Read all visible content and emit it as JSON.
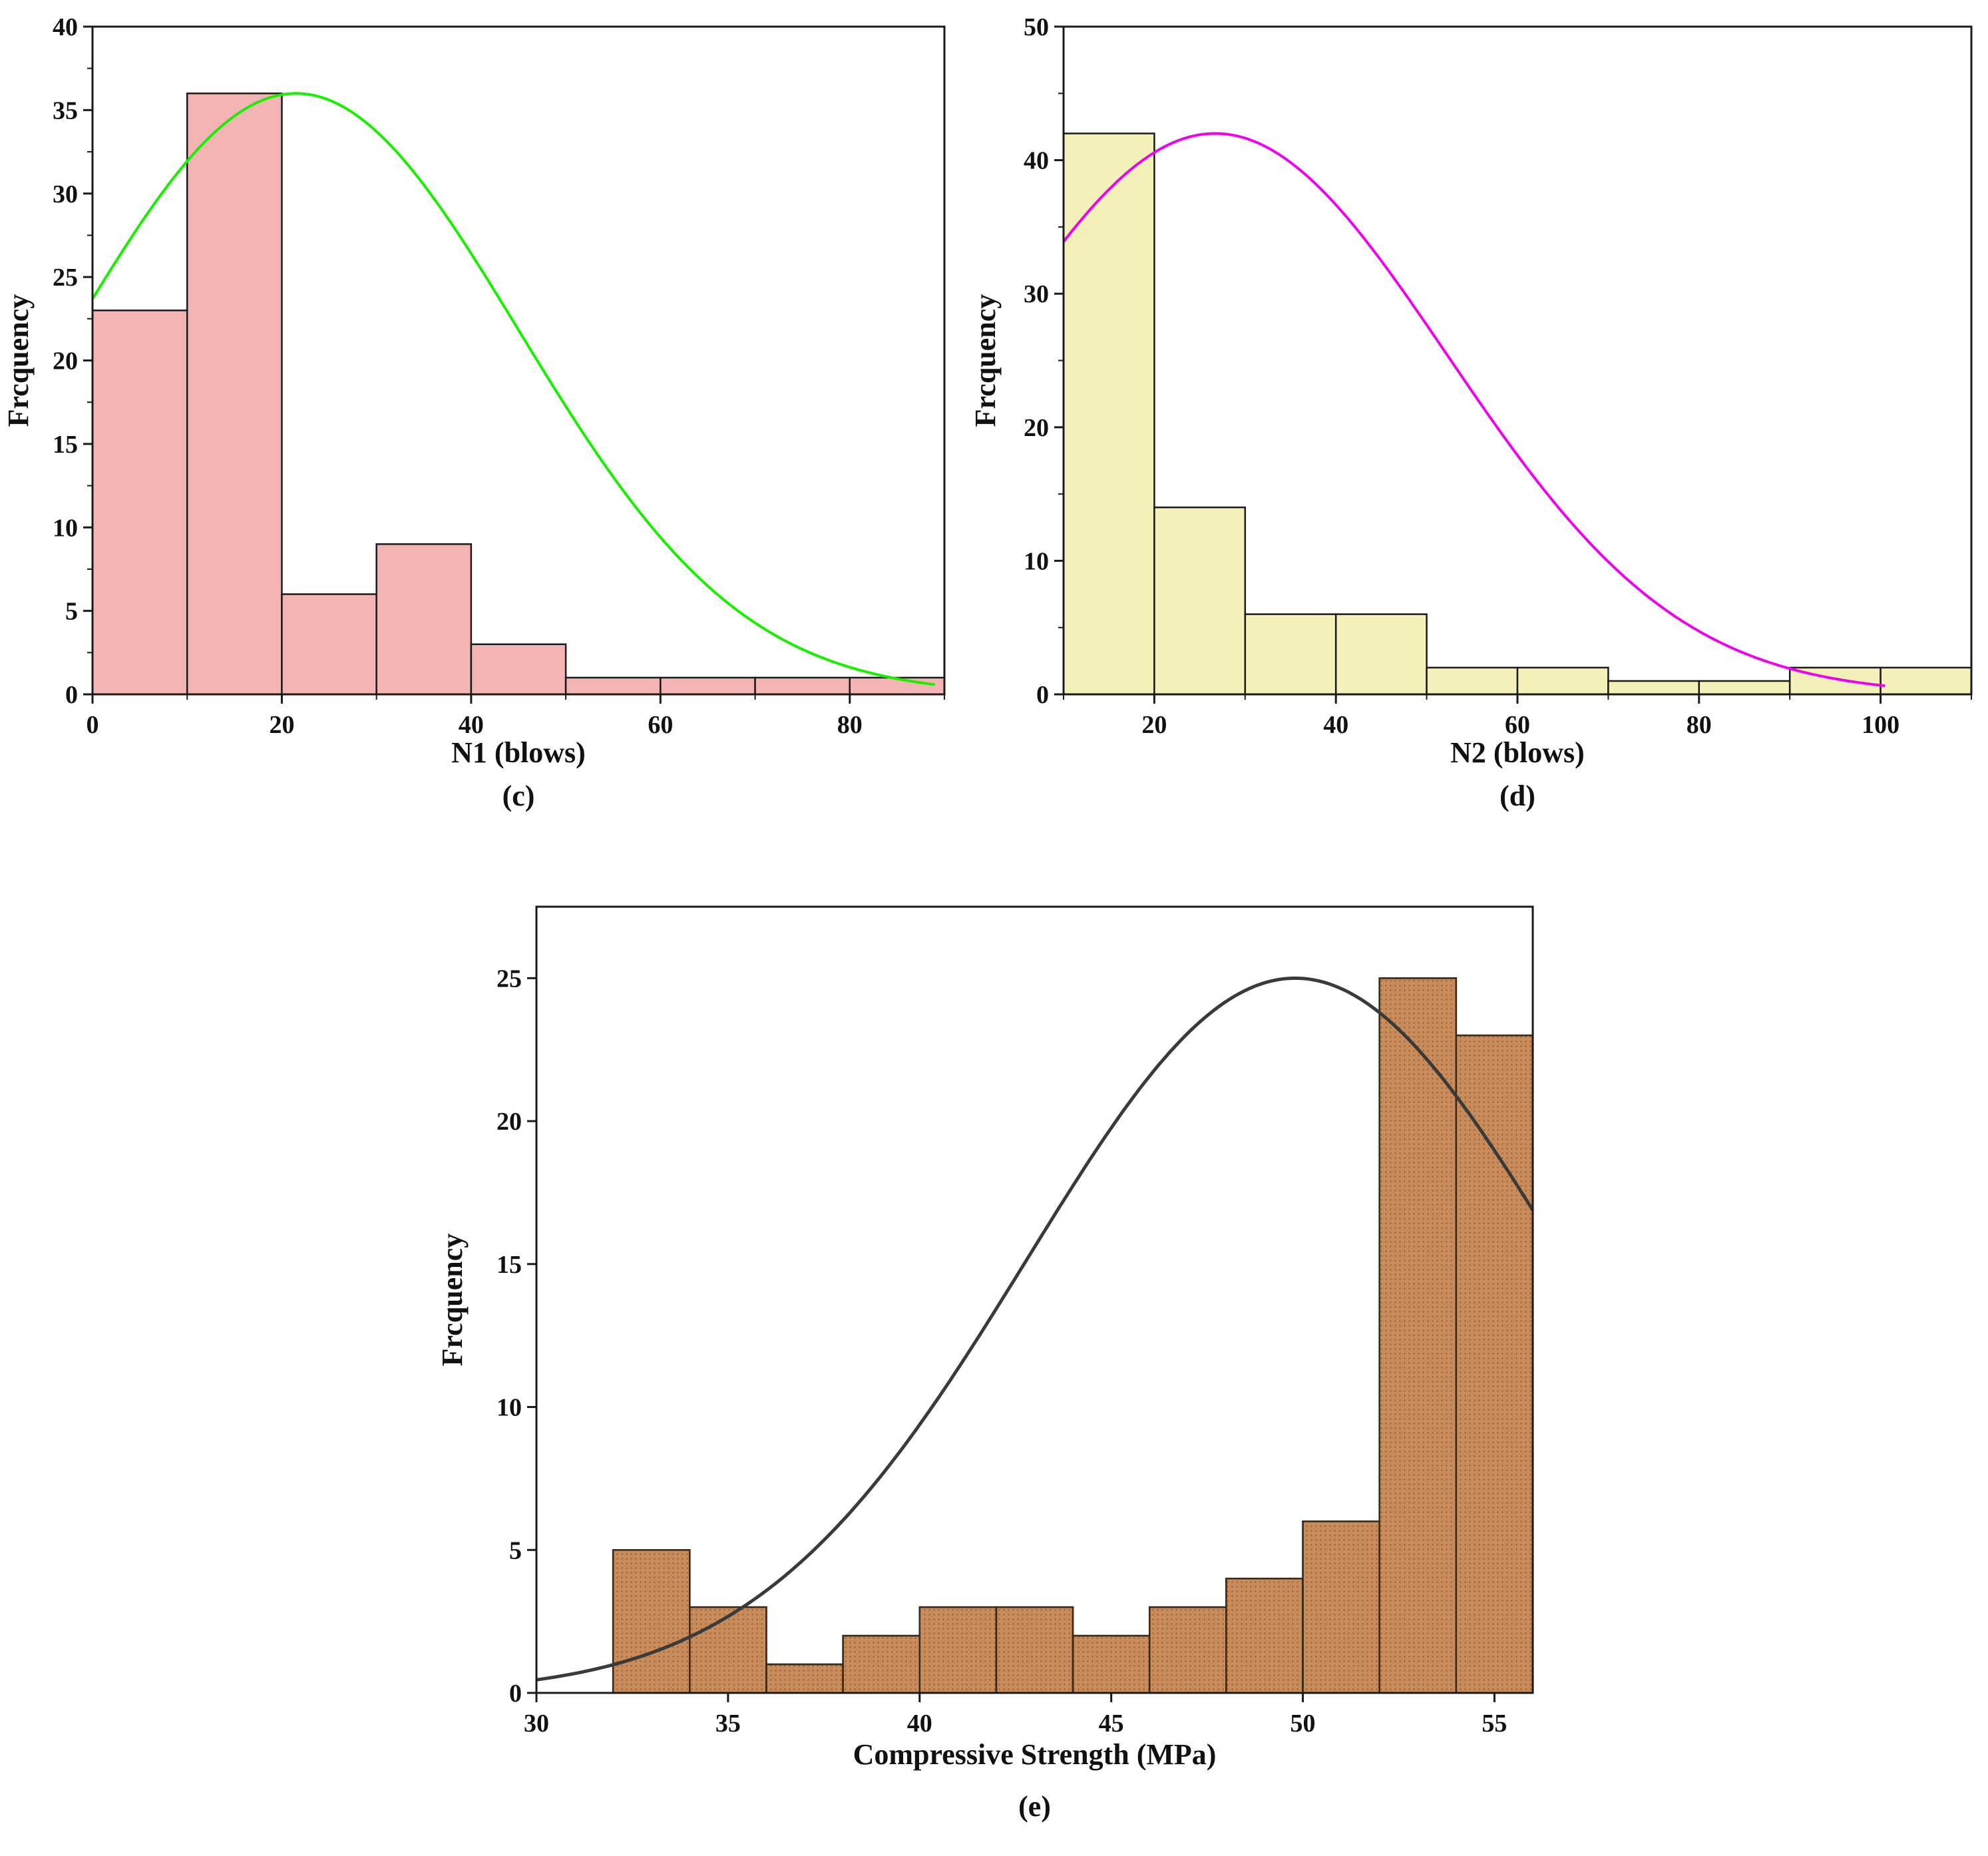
{
  "chart_data": [
    {
      "type": "bar",
      "id": "c",
      "panel_label": "(c)",
      "xlabel": "N1 (blows)",
      "ylabel": "Frcquency",
      "xlim": [
        0,
        90
      ],
      "ylim": [
        0,
        40
      ],
      "xticks": [
        "0",
        "20",
        "40",
        "60",
        "80"
      ],
      "xtick_values": [
        0,
        20,
        40,
        60,
        80
      ],
      "yticks": [
        "0",
        "5",
        "10",
        "15",
        "20",
        "25",
        "30",
        "35",
        "40"
      ],
      "ytick_values": [
        0,
        5,
        10,
        15,
        20,
        25,
        30,
        35,
        40
      ],
      "bins": [
        [
          0,
          10
        ],
        [
          10,
          20
        ],
        [
          20,
          30
        ],
        [
          30,
          40
        ],
        [
          40,
          50
        ],
        [
          50,
          60
        ],
        [
          60,
          70
        ],
        [
          70,
          80
        ],
        [
          80,
          90
        ]
      ],
      "values": [
        23,
        36,
        6,
        9,
        3,
        1,
        1,
        1,
        1
      ],
      "fit_curve": {
        "type": "normal",
        "mean": 21.5,
        "sd": 23.5,
        "peak": 36,
        "x_range": [
          0,
          89
        ]
      },
      "colors": {
        "bar_fill": "#f5b4b4",
        "bar_stroke": "#1a1a1a",
        "curve": "#1aee00"
      }
    },
    {
      "type": "bar",
      "id": "d",
      "panel_label": "(d)",
      "xlabel": "N2 (blows)",
      "ylabel": "Frcquency",
      "xlim": [
        10,
        110
      ],
      "ylim": [
        0,
        50
      ],
      "xticks": [
        "20",
        "40",
        "60",
        "80",
        "100"
      ],
      "xtick_values": [
        20,
        40,
        60,
        80,
        100
      ],
      "yticks": [
        "0",
        "10",
        "20",
        "30",
        "40",
        "50"
      ],
      "ytick_values": [
        0,
        10,
        20,
        30,
        40,
        50
      ],
      "bins": [
        [
          10,
          20
        ],
        [
          20,
          30
        ],
        [
          30,
          40
        ],
        [
          40,
          50
        ],
        [
          50,
          60
        ],
        [
          60,
          70
        ],
        [
          70,
          80
        ],
        [
          80,
          90
        ],
        [
          90,
          100
        ],
        [
          100,
          110
        ]
      ],
      "values": [
        42,
        14,
        6,
        6,
        2,
        2,
        1,
        1,
        2,
        2
      ],
      "fit_curve": {
        "type": "normal",
        "mean": 26.7,
        "sd": 25.5,
        "peak": 42,
        "x_range": [
          10,
          100.5
        ]
      },
      "colors": {
        "bar_fill": "#f3f1b9",
        "bar_stroke": "#1a1a1a",
        "curve": "#ee00ee"
      }
    },
    {
      "type": "bar",
      "id": "e",
      "panel_label": "(e)",
      "xlabel": "Compressive Strength (MPa)",
      "ylabel": "Frcquency",
      "xlim": [
        30,
        56
      ],
      "ylim": [
        0,
        27.5
      ],
      "xticks": [
        "30",
        "35",
        "40",
        "45",
        "50",
        "55"
      ],
      "xtick_values": [
        30,
        35,
        40,
        45,
        50,
        55
      ],
      "yticks": [
        "0",
        "5",
        "10",
        "15",
        "20",
        "25"
      ],
      "ytick_values": [
        0,
        5,
        10,
        15,
        20,
        25
      ],
      "bins": [
        [
          32,
          34
        ],
        [
          34,
          36
        ],
        [
          36,
          38
        ],
        [
          38,
          40
        ],
        [
          40,
          42
        ],
        [
          42,
          44
        ],
        [
          44,
          46
        ],
        [
          46,
          48
        ],
        [
          48,
          50
        ],
        [
          50,
          52
        ],
        [
          52,
          54
        ],
        [
          54,
          56
        ]
      ],
      "values": [
        5,
        3,
        1,
        2,
        3,
        3,
        2,
        3,
        4,
        6,
        25,
        23
      ],
      "fit_curve": {
        "type": "normal",
        "mean": 49.8,
        "sd": 7.0,
        "peak": 25,
        "x_range": [
          30,
          56
        ]
      },
      "colors": {
        "bar_fill": "#c98b5a",
        "bar_stroke": "#3a2a1a",
        "curve": "#3a3a3a",
        "dots": "#8a5a34"
      }
    }
  ]
}
